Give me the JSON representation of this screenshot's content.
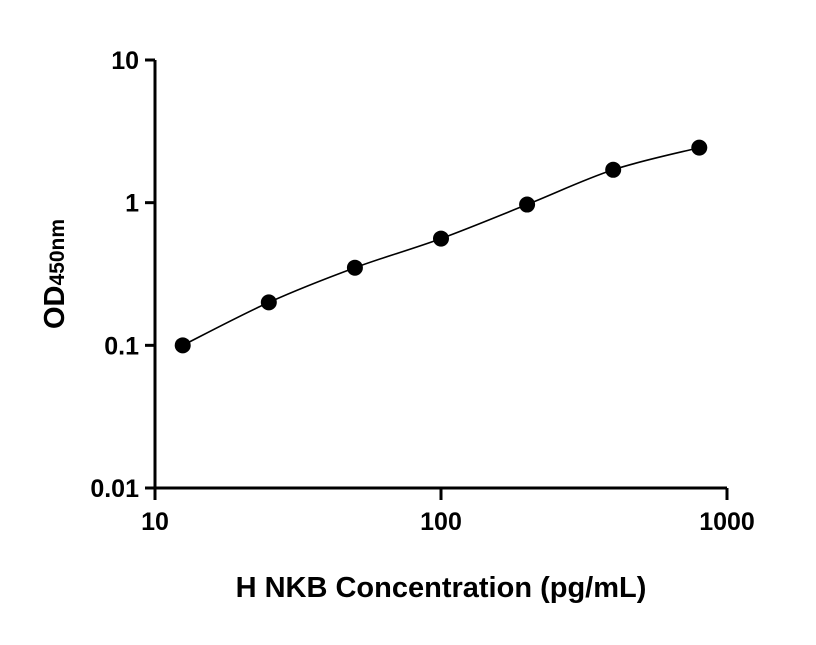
{
  "chart_data": {
    "type": "scatter",
    "title": "",
    "xlabel": "H NKB Concentration (pg/mL)",
    "ylabel_main": "OD",
    "ylabel_sub": "450nm",
    "x_scale": "log",
    "y_scale": "log",
    "xlim": [
      10,
      1000
    ],
    "ylim": [
      0.01,
      10
    ],
    "x_ticks": [
      "10",
      "100",
      "1000"
    ],
    "y_ticks": [
      "0.01",
      "0.1",
      "1",
      "10"
    ],
    "grid": false,
    "fit_curve": true,
    "series": [
      {
        "x": [
          12.5,
          25,
          50,
          100,
          200,
          400,
          800
        ],
        "y": [
          0.1,
          0.2,
          0.35,
          0.56,
          0.97,
          1.7,
          2.43
        ]
      }
    ],
    "colors": {
      "points": "#000000",
      "axes": "#000000"
    }
  }
}
